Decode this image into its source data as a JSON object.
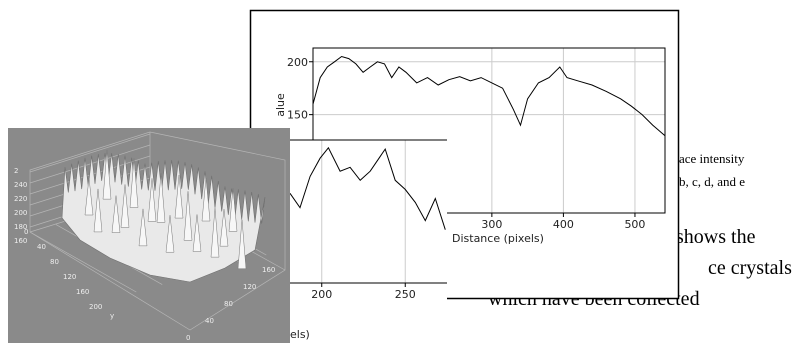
{
  "main_plot": {
    "y_axis_label": "alue",
    "x_axis_label": "Distance (pixels)",
    "xlim": [
      50,
      542
    ],
    "ylim": [
      57,
      213
    ],
    "xticks": [
      300,
      400,
      500
    ],
    "yticks": [
      150,
      200
    ],
    "x": [
      50,
      60,
      70,
      80,
      90,
      100,
      110,
      120,
      130,
      140,
      150,
      160,
      170,
      180,
      195,
      210,
      225,
      240,
      255,
      270,
      285,
      300,
      315,
      330,
      340,
      350,
      365,
      380,
      395,
      405,
      420,
      440,
      460,
      480,
      495,
      510,
      525,
      542
    ],
    "values": [
      160,
      185,
      195,
      200,
      205,
      203,
      198,
      190,
      195,
      200,
      198,
      185,
      195,
      190,
      180,
      185,
      178,
      183,
      186,
      182,
      185,
      180,
      175,
      155,
      140,
      165,
      180,
      185,
      195,
      185,
      182,
      178,
      172,
      165,
      158,
      150,
      140,
      130
    ]
  },
  "inset_plot": {
    "x_axis_label": "els)",
    "xlim": [
      178,
      275
    ],
    "ylim": [
      100,
      210
    ],
    "xticks": [
      200,
      250
    ],
    "x": [
      181,
      187,
      193,
      199,
      204,
      211,
      217,
      223,
      229,
      238,
      244,
      250,
      256,
      262,
      268,
      274
    ],
    "values": [
      169,
      158,
      182,
      196,
      204,
      186,
      189,
      179,
      186,
      203,
      179,
      172,
      162,
      148,
      165,
      141
    ]
  },
  "surface_plot": {
    "z_tick_labels": [
      "2",
      "240",
      "220",
      "200",
      "180",
      "160"
    ],
    "y_tick_labels": [
      "0",
      "40",
      "80",
      "120",
      "160",
      "200"
    ],
    "y_axis_label": "y",
    "x_tick_labels": [
      "160",
      "120",
      "80",
      "40",
      "0"
    ]
  },
  "text": {
    "lines": [
      "ace intensity",
      "b, c, d, and e",
      "shows the",
      "ce crystals",
      "which have been collected"
    ]
  }
}
